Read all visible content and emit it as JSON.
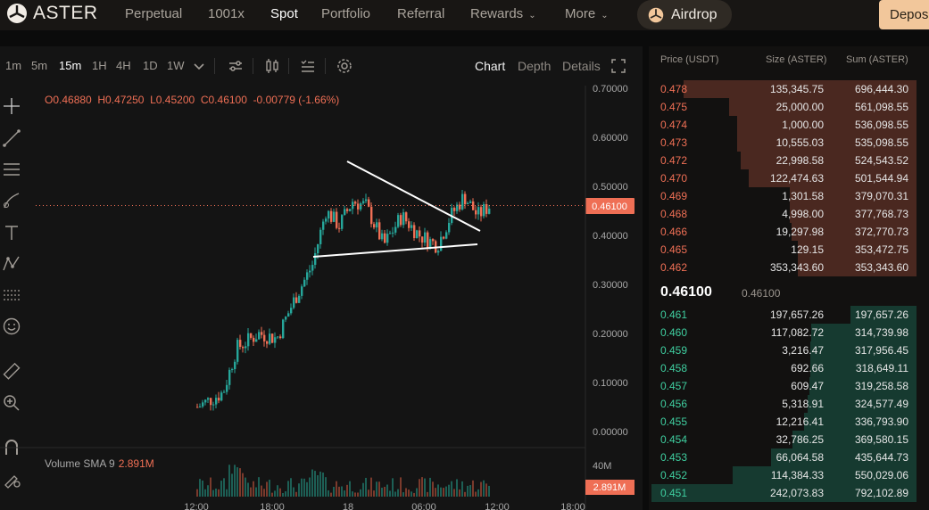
{
  "nav": {
    "brand": "ASTER",
    "items": [
      {
        "label": "Perpetual",
        "dropdown": false,
        "active": false
      },
      {
        "label": "1001x",
        "dropdown": false,
        "active": false
      },
      {
        "label": "Spot",
        "dropdown": false,
        "active": true
      },
      {
        "label": "Portfolio",
        "dropdown": false,
        "active": false
      },
      {
        "label": "Referral",
        "dropdown": false,
        "active": false
      },
      {
        "label": "Rewards",
        "dropdown": true,
        "active": false
      },
      {
        "label": "More",
        "dropdown": true,
        "active": false
      }
    ],
    "airdrop_label": "Airdrop",
    "deposit_label": "Depos",
    "chevron": "⌄"
  },
  "toolbar": {
    "timeframes": [
      "1m",
      "5m",
      "15m",
      "1H",
      "4H",
      "1D",
      "1W"
    ],
    "active_timeframe": "15m",
    "view_tabs": [
      "Chart",
      "Depth",
      "Details"
    ],
    "active_view": "Chart"
  },
  "ohlc": {
    "open": "O0.46880",
    "high": "H0.47250",
    "low": "L0.45200",
    "close": "C0.46100",
    "change": "-0.00779 (-1.66%)"
  },
  "price_axis": {
    "ticks": [
      "0.70000",
      "0.60000",
      "0.50000",
      "0.40000",
      "0.30000",
      "0.20000",
      "0.10000",
      "0.00000"
    ],
    "current": "0.46100"
  },
  "time_axis": [
    "12:00",
    "18:00",
    "18",
    "06:00",
    "12:00",
    "18:00"
  ],
  "volume": {
    "label": "Volume SMA 9",
    "value": "2.891M",
    "axis_top": "40M",
    "current": "2.891M"
  },
  "orderbook": {
    "headers": [
      "Price (USDT)",
      "Size (ASTER)",
      "Sum (ASTER)"
    ],
    "asks": [
      {
        "price": "0.478",
        "size": "135,345.75",
        "sum": "696,444.30"
      },
      {
        "price": "0.475",
        "size": "25,000.00",
        "sum": "561,098.55"
      },
      {
        "price": "0.474",
        "size": "1,000.00",
        "sum": "536,098.55"
      },
      {
        "price": "0.473",
        "size": "10,555.03",
        "sum": "535,098.55"
      },
      {
        "price": "0.472",
        "size": "22,998.58",
        "sum": "524,543.52"
      },
      {
        "price": "0.470",
        "size": "122,474.63",
        "sum": "501,544.94"
      },
      {
        "price": "0.469",
        "size": "1,301.58",
        "sum": "379,070.31"
      },
      {
        "price": "0.468",
        "size": "4,998.00",
        "sum": "377,768.73"
      },
      {
        "price": "0.466",
        "size": "19,297.98",
        "sum": "372,770.73"
      },
      {
        "price": "0.465",
        "size": "129.15",
        "sum": "353,472.75"
      },
      {
        "price": "0.462",
        "size": "353,343.60",
        "sum": "353,343.60"
      }
    ],
    "last_price": "0.46100",
    "mark_price": "0.46100",
    "bids": [
      {
        "price": "0.461",
        "size": "197,657.26",
        "sum": "197,657.26"
      },
      {
        "price": "0.460",
        "size": "117,082.72",
        "sum": "314,739.98"
      },
      {
        "price": "0.459",
        "size": "3,216.47",
        "sum": "317,956.45"
      },
      {
        "price": "0.458",
        "size": "692.66",
        "sum": "318,649.11"
      },
      {
        "price": "0.457",
        "size": "609.47",
        "sum": "319,258.58"
      },
      {
        "price": "0.456",
        "size": "5,318.91",
        "sum": "324,577.49"
      },
      {
        "price": "0.455",
        "size": "12,216.41",
        "sum": "336,793.90"
      },
      {
        "price": "0.454",
        "size": "32,786.25",
        "sum": "369,580.15"
      },
      {
        "price": "0.453",
        "size": "66,064.58",
        "sum": "435,644.73"
      },
      {
        "price": "0.452",
        "size": "114,384.33",
        "sum": "550,029.06"
      },
      {
        "price": "0.451",
        "size": "242,073.83",
        "sum": "792,102.89"
      }
    ]
  },
  "colors": {
    "up": "#26a69a",
    "down": "#ef6f55",
    "accent": "#f2c79b"
  }
}
